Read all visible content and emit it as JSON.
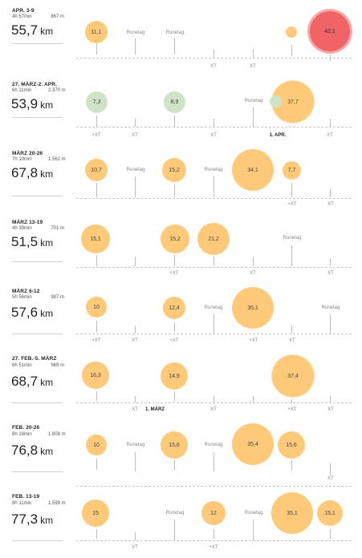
{
  "weeks": [
    {
      "range": "APR. 3-9",
      "time": "4h 57min",
      "elevation": "867 m",
      "km": "55,7",
      "unit": "km",
      "runs": [
        {
          "value": "11,1",
          "style": "run"
        },
        {
          "value": "",
          "style": "run"
        },
        {
          "value": "42,1",
          "style": "race"
        }
      ],
      "tags": [
        "Runetag",
        "Runetag"
      ],
      "xt": [
        "XT",
        "XT"
      ]
    },
    {
      "range": "27. MÄRZ-2. APR.",
      "time": "6h 11min",
      "elevation": "2.370 m",
      "km": "53,9",
      "unit": "km",
      "runs": [
        {
          "value": "7,3",
          "style": "green"
        },
        {
          "value": "8,9",
          "style": "green"
        },
        {
          "value": "",
          "style": "green"
        },
        {
          "value": "37,7",
          "style": "run"
        }
      ],
      "tags": [
        "Runetag"
      ],
      "xt": [
        "+XT",
        "XT",
        "XT",
        "XT"
      ],
      "marker": "1. APR."
    },
    {
      "range": "MÄRZ 20-26",
      "time": "7h 10min",
      "elevation": "1.562 m",
      "km": "67,8",
      "unit": "km",
      "runs": [
        {
          "value": "10,7",
          "style": "run"
        },
        {
          "value": "15,2",
          "style": "run"
        },
        {
          "value": "34,1",
          "style": "run"
        },
        {
          "value": "7,7",
          "style": "run"
        }
      ],
      "tags": [
        "Runetag",
        "Runetag"
      ],
      "xt": [
        "+XT",
        "XT"
      ]
    },
    {
      "range": "MÄRZ 13-19",
      "time": "4h 39min",
      "elevation": "701 m",
      "km": "51,5",
      "unit": "km",
      "runs": [
        {
          "value": "15,1",
          "style": "run"
        },
        {
          "value": "15,2",
          "style": "run"
        },
        {
          "value": "21,2",
          "style": "run"
        }
      ],
      "tags": [
        "Runetag"
      ],
      "xt": [
        "+XT",
        "XT",
        "XT"
      ]
    },
    {
      "range": "MÄRZ 6-12",
      "time": "5h 56min",
      "elevation": "987 m",
      "km": "57,6",
      "unit": "km",
      "runs": [
        {
          "value": "10",
          "style": "run"
        },
        {
          "value": "12,4",
          "style": "run"
        },
        {
          "value": "35,1",
          "style": "run"
        }
      ],
      "tags": [
        "Runetag",
        "Runetag"
      ],
      "xt": [
        "+XT",
        "XT",
        "+XT",
        "+XT",
        "XT"
      ]
    },
    {
      "range": "27. FEB.-5. MÄRZ",
      "time": "6h 51min",
      "elevation": "969 m",
      "km": "68,7",
      "unit": "km",
      "runs": [
        {
          "value": "16,3",
          "style": "run"
        },
        {
          "value": "14,9",
          "style": "run"
        },
        {
          "value": "37,4",
          "style": "run"
        }
      ],
      "tags": [],
      "xt": [
        "XT",
        "XT",
        "+XT",
        "XT"
      ],
      "marker": "1. MÄRZ"
    },
    {
      "range": "FEB. 20-26",
      "time": "8h 19min",
      "elevation": "1.808 m",
      "km": "76,8",
      "unit": "km",
      "runs": [
        {
          "value": "10",
          "style": "run"
        },
        {
          "value": "15,6",
          "style": "run"
        },
        {
          "value": "35,4",
          "style": "run"
        },
        {
          "value": "15,6",
          "style": "run"
        }
      ],
      "tags": [
        "Runetag",
        "Runetag"
      ],
      "xt": [
        "XT"
      ]
    },
    {
      "range": "FEB. 13-19",
      "time": "8h 11min",
      "elevation": "1.599 m",
      "km": "77,3",
      "unit": "km",
      "runs": [
        {
          "value": "15",
          "style": "run"
        },
        {
          "value": "12",
          "style": "run"
        },
        {
          "value": "35,1",
          "style": "run"
        },
        {
          "value": "15,1",
          "style": "run"
        }
      ],
      "tags": [
        "Runetag",
        "Runetag"
      ],
      "xt": [
        "XT",
        "+XT"
      ]
    }
  ]
}
